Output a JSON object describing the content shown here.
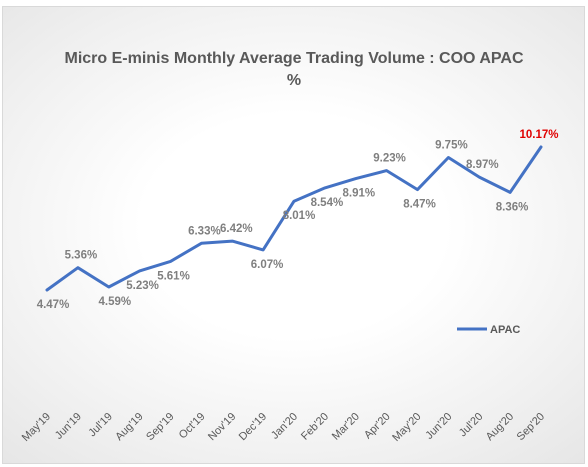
{
  "chart_data": {
    "type": "line",
    "title": "Micro E-minis Monthly Average Trading Volume : COO APAC",
    "subtitle": "%",
    "categories": [
      "May'19",
      "Jun'19",
      "Jul'19",
      "Aug'19",
      "Sep'19",
      "Oct'19",
      "Nov'19",
      "Dec'19",
      "Jan'20",
      "Feb'20",
      "Mar'20",
      "Apr'20",
      "May'20",
      "Jun'20",
      "Jul'20",
      "Aug'20",
      "Sep'20"
    ],
    "series": [
      {
        "name": "APAC",
        "color": "#4472c4",
        "values": [
          4.47,
          5.36,
          4.59,
          5.23,
          5.61,
          6.33,
          6.42,
          6.07,
          8.01,
          8.54,
          8.91,
          9.23,
          8.47,
          9.75,
          8.97,
          8.36,
          10.17
        ],
        "labels": [
          "4.47%",
          "5.36%",
          "4.59%",
          "5.23%",
          "5.61%",
          "6.33%",
          "6.42%",
          "6.07%",
          "8.01%",
          "8.54%",
          "8.91%",
          "9.23%",
          "8.47%",
          "9.75%",
          "8.97%",
          "8.36%",
          "10.17%"
        ]
      }
    ],
    "highlight_color": "#e00000",
    "grid": false,
    "legend": "right"
  }
}
